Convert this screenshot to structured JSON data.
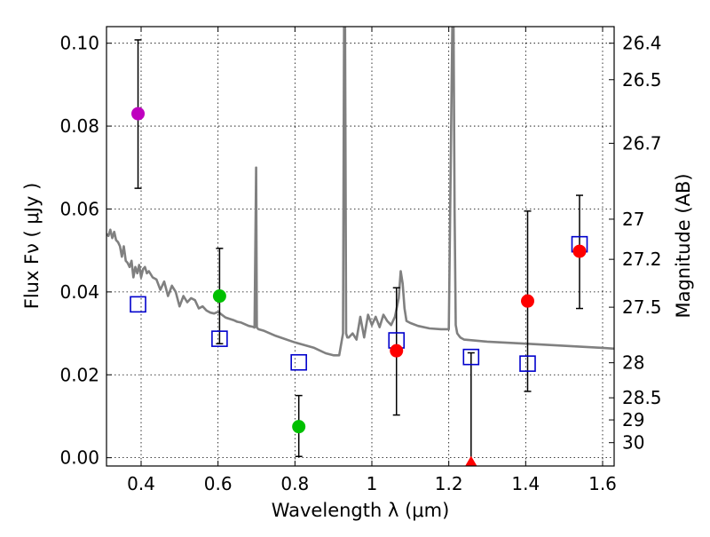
{
  "chart_data": {
    "type": "scatter",
    "title": "",
    "xlabel": "Wavelength  λ (μm)",
    "ylabel": "Flux  Fν  ( μJy )",
    "y2label": "Magnitude (AB)",
    "xlim": [
      0.31,
      1.63
    ],
    "ylim": [
      -0.002,
      0.104
    ],
    "grid": true,
    "xticks": [
      0.4,
      0.6,
      0.8,
      1.0,
      1.2,
      1.4,
      1.6
    ],
    "xtick_labels": [
      "0.4",
      "0.6",
      "0.8",
      "1",
      "1.2",
      "1.4",
      "1.6"
    ],
    "yticks": [
      0.0,
      0.02,
      0.04,
      0.06,
      0.08,
      0.1
    ],
    "ytick_labels": [
      "0.00",
      "0.02",
      "0.04",
      "0.06",
      "0.08",
      "0.10"
    ],
    "mag_ticks": [
      26.4,
      26.5,
      26.7,
      27,
      27.2,
      27.5,
      28,
      28.5,
      29,
      30
    ],
    "mag_tick_labels": [
      "26.4",
      "26.5",
      "26.7",
      "27",
      "27.2",
      "27.5",
      "28",
      "28.5",
      "29",
      "30"
    ],
    "colors": {
      "magenta": "#bf00bf",
      "green": "#00c000",
      "red": "#ff0000",
      "model_square": "#0000cc",
      "sed": "#808080",
      "errorbar": "#000000"
    },
    "observed": [
      {
        "x": 0.392,
        "y": 0.083,
        "yerr_low": 0.018,
        "yerr_high": 0.0178,
        "color": "magenta",
        "marker": "circle"
      },
      {
        "x": 0.604,
        "y": 0.039,
        "yerr_low": 0.0115,
        "yerr_high": 0.0115,
        "color": "green",
        "marker": "circle"
      },
      {
        "x": 0.81,
        "y": 0.0075,
        "yerr_low": 0.0072,
        "yerr_high": 0.0075,
        "color": "green",
        "marker": "circle"
      },
      {
        "x": 1.064,
        "y": 0.0258,
        "yerr_low": 0.0155,
        "yerr_high": 0.0152,
        "color": "red",
        "marker": "circle"
      },
      {
        "x": 1.258,
        "y": -0.0015,
        "yerr_low": 0.0,
        "yerr_high": 0.0268,
        "color": "red",
        "marker": "triangle"
      },
      {
        "x": 1.405,
        "y": 0.0378,
        "yerr_low": 0.0218,
        "yerr_high": 0.0217,
        "color": "red",
        "marker": "circle"
      },
      {
        "x": 1.54,
        "y": 0.0498,
        "yerr_low": 0.0138,
        "yerr_high": 0.0135,
        "color": "red",
        "marker": "circle"
      }
    ],
    "model_points": [
      {
        "x": 0.392,
        "y": 0.037
      },
      {
        "x": 0.604,
        "y": 0.0287
      },
      {
        "x": 0.81,
        "y": 0.023
      },
      {
        "x": 1.064,
        "y": 0.0283
      },
      {
        "x": 1.258,
        "y": 0.0243
      },
      {
        "x": 1.405,
        "y": 0.0227
      },
      {
        "x": 1.54,
        "y": 0.0515
      }
    ],
    "sed_curve": {
      "x": [
        0.31,
        0.315,
        0.32,
        0.325,
        0.33,
        0.335,
        0.34,
        0.345,
        0.35,
        0.355,
        0.36,
        0.365,
        0.37,
        0.375,
        0.38,
        0.385,
        0.39,
        0.395,
        0.4,
        0.405,
        0.41,
        0.415,
        0.42,
        0.43,
        0.44,
        0.45,
        0.46,
        0.47,
        0.48,
        0.49,
        0.5,
        0.51,
        0.52,
        0.53,
        0.54,
        0.55,
        0.56,
        0.57,
        0.58,
        0.59,
        0.6,
        0.61,
        0.62,
        0.63,
        0.64,
        0.65,
        0.66,
        0.67,
        0.68,
        0.69,
        0.695,
        0.699,
        0.701,
        0.705,
        0.72,
        0.75,
        0.8,
        0.85,
        0.88,
        0.9,
        0.915,
        0.925,
        0.928,
        0.93,
        0.933,
        0.936,
        0.94,
        0.95,
        0.96,
        0.97,
        0.98,
        0.99,
        1.0,
        1.01,
        1.02,
        1.03,
        1.04,
        1.05,
        1.06,
        1.07,
        1.075,
        1.08,
        1.085,
        1.09,
        1.1,
        1.12,
        1.15,
        1.18,
        1.2,
        1.21,
        1.212,
        1.215,
        1.218,
        1.222,
        1.226,
        1.23,
        1.24,
        1.3,
        1.4,
        1.5,
        1.6,
        1.63
      ],
      "y": [
        0.054,
        0.0535,
        0.055,
        0.053,
        0.0545,
        0.0525,
        0.052,
        0.051,
        0.0485,
        0.051,
        0.0475,
        0.047,
        0.046,
        0.0475,
        0.0435,
        0.046,
        0.0445,
        0.0465,
        0.0435,
        0.0455,
        0.046,
        0.0445,
        0.045,
        0.0435,
        0.043,
        0.0405,
        0.0425,
        0.039,
        0.0415,
        0.04,
        0.0365,
        0.039,
        0.0375,
        0.0385,
        0.038,
        0.036,
        0.0365,
        0.0355,
        0.035,
        0.0348,
        0.0352,
        0.0345,
        0.0338,
        0.0335,
        0.0332,
        0.0328,
        0.0326,
        0.0322,
        0.0318,
        0.0316,
        0.0314,
        0.07,
        0.0314,
        0.031,
        0.0306,
        0.0294,
        0.0278,
        0.0265,
        0.0252,
        0.0247,
        0.0247,
        0.03,
        0.11,
        0.11,
        0.03,
        0.029,
        0.029,
        0.03,
        0.0285,
        0.034,
        0.029,
        0.0345,
        0.032,
        0.034,
        0.0315,
        0.0345,
        0.033,
        0.032,
        0.034,
        0.0385,
        0.045,
        0.042,
        0.036,
        0.033,
        0.0325,
        0.0318,
        0.0312,
        0.031,
        0.031,
        0.11,
        0.11,
        0.06,
        0.032,
        0.03,
        0.0295,
        0.029,
        0.0285,
        0.028,
        0.0275,
        0.027,
        0.0265,
        0.0263
      ]
    }
  }
}
